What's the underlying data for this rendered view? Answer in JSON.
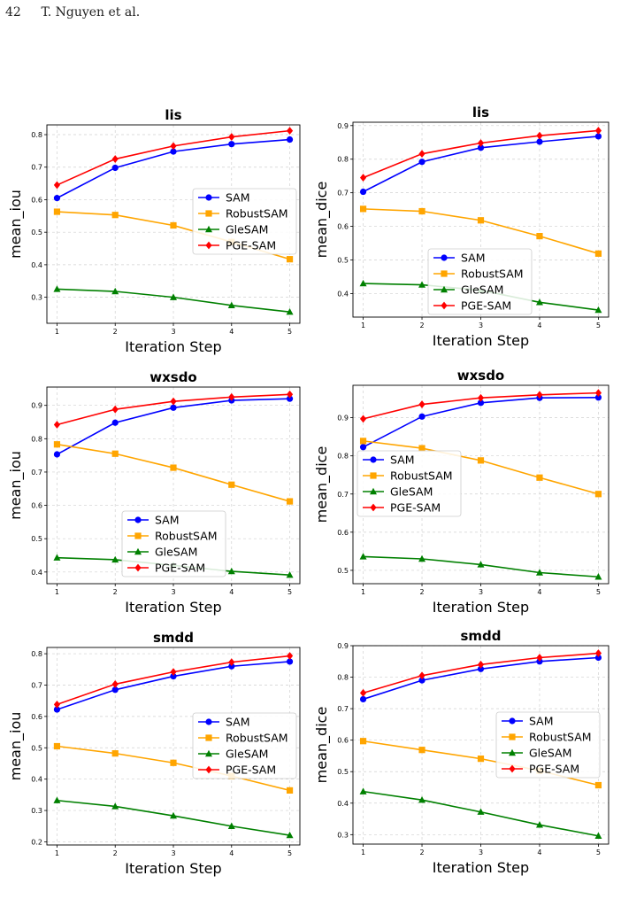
{
  "page": {
    "number": "42",
    "running_head": "T. Nguyen et al."
  },
  "legend_labels": [
    "SAM",
    "RobustSAM",
    "GleSAM",
    "PGE-SAM"
  ],
  "series_colors": {
    "SAM": "#0000ff",
    "RobustSAM": "#ffa500",
    "GleSAM": "#008000",
    "PGE-SAM": "#ff0000"
  },
  "series_markers": {
    "SAM": "circle",
    "RobustSAM": "square",
    "GleSAM": "triangle",
    "PGE-SAM": "diamond"
  },
  "chart_data": [
    {
      "type": "line",
      "title": "lis",
      "xlabel": "Iteration Step",
      "ylabel": "mean_iou",
      "x": [
        1,
        2,
        3,
        4,
        5
      ],
      "ylim": [
        0.22,
        0.83
      ],
      "yticks": [
        0.3,
        0.4,
        0.5,
        0.6,
        0.7,
        0.8
      ],
      "grid": true,
      "legend_position": "center-right",
      "series": [
        {
          "name": "SAM",
          "values": [
            0.605,
            0.698,
            0.748,
            0.771,
            0.785
          ]
        },
        {
          "name": "RobustSAM",
          "values": [
            0.563,
            0.553,
            0.521,
            0.47,
            0.417
          ]
        },
        {
          "name": "GleSAM",
          "values": [
            0.325,
            0.318,
            0.3,
            0.275,
            0.255
          ]
        },
        {
          "name": "PGE-SAM",
          "values": [
            0.645,
            0.725,
            0.765,
            0.793,
            0.812
          ]
        }
      ]
    },
    {
      "type": "line",
      "title": "lis",
      "xlabel": "Iteration Step",
      "ylabel": "mean_dice",
      "x": [
        1,
        2,
        3,
        4,
        5
      ],
      "ylim": [
        0.33,
        0.91
      ],
      "yticks": [
        0.4,
        0.5,
        0.6,
        0.7,
        0.8,
        0.9
      ],
      "grid": true,
      "legend_position": "lower-right",
      "series": [
        {
          "name": "SAM",
          "values": [
            0.703,
            0.792,
            0.834,
            0.852,
            0.868
          ]
        },
        {
          "name": "RobustSAM",
          "values": [
            0.652,
            0.645,
            0.618,
            0.571,
            0.519
          ]
        },
        {
          "name": "GleSAM",
          "values": [
            0.43,
            0.426,
            0.41,
            0.374,
            0.351
          ]
        },
        {
          "name": "PGE-SAM",
          "values": [
            0.745,
            0.816,
            0.848,
            0.87,
            0.885
          ]
        }
      ]
    },
    {
      "type": "line",
      "title": "wxsdo",
      "xlabel": "Iteration Step",
      "ylabel": "mean_iou",
      "x": [
        1,
        2,
        3,
        4,
        5
      ],
      "ylim": [
        0.365,
        0.955
      ],
      "yticks": [
        0.4,
        0.5,
        0.6,
        0.7,
        0.8,
        0.9
      ],
      "grid": true,
      "legend_position": "lower-center",
      "series": [
        {
          "name": "SAM",
          "values": [
            0.753,
            0.848,
            0.893,
            0.915,
            0.92
          ]
        },
        {
          "name": "RobustSAM",
          "values": [
            0.783,
            0.755,
            0.713,
            0.662,
            0.612
          ]
        },
        {
          "name": "GleSAM",
          "values": [
            0.443,
            0.437,
            0.42,
            0.402,
            0.391
          ]
        },
        {
          "name": "PGE-SAM",
          "values": [
            0.842,
            0.888,
            0.912,
            0.925,
            0.933
          ]
        }
      ]
    },
    {
      "type": "line",
      "title": "wxsdo",
      "xlabel": "Iteration Step",
      "ylabel": "mean_dice",
      "x": [
        1,
        2,
        3,
        4,
        5
      ],
      "ylim": [
        0.465,
        0.985
      ],
      "yticks": [
        0.5,
        0.6,
        0.7,
        0.8,
        0.9
      ],
      "grid": true,
      "legend_position": "center-left",
      "series": [
        {
          "name": "SAM",
          "values": [
            0.823,
            0.903,
            0.939,
            0.952,
            0.953
          ]
        },
        {
          "name": "RobustSAM",
          "values": [
            0.839,
            0.82,
            0.788,
            0.743,
            0.7
          ]
        },
        {
          "name": "GleSAM",
          "values": [
            0.536,
            0.53,
            0.515,
            0.494,
            0.483
          ]
        },
        {
          "name": "PGE-SAM",
          "values": [
            0.897,
            0.935,
            0.952,
            0.96,
            0.965
          ]
        }
      ]
    },
    {
      "type": "line",
      "title": "smdd",
      "xlabel": "Iteration Step",
      "ylabel": "mean_iou",
      "x": [
        1,
        2,
        3,
        4,
        5
      ],
      "ylim": [
        0.19,
        0.82
      ],
      "yticks": [
        0.2,
        0.3,
        0.4,
        0.5,
        0.6,
        0.7,
        0.8
      ],
      "grid": true,
      "legend_position": "center-right",
      "series": [
        {
          "name": "SAM",
          "values": [
            0.622,
            0.685,
            0.728,
            0.76,
            0.775
          ]
        },
        {
          "name": "RobustSAM",
          "values": [
            0.505,
            0.482,
            0.452,
            0.41,
            0.364
          ]
        },
        {
          "name": "GleSAM",
          "values": [
            0.332,
            0.313,
            0.283,
            0.25,
            0.221
          ]
        },
        {
          "name": "PGE-SAM",
          "values": [
            0.638,
            0.703,
            0.742,
            0.773,
            0.793
          ]
        }
      ]
    },
    {
      "type": "line",
      "title": "smdd",
      "xlabel": "Iteration Step",
      "ylabel": "mean_dice",
      "x": [
        1,
        2,
        3,
        4,
        5
      ],
      "ylim": [
        0.27,
        0.9
      ],
      "yticks": [
        0.3,
        0.4,
        0.5,
        0.6,
        0.7,
        0.8,
        0.9
      ],
      "grid": true,
      "legend_position": "center-right",
      "series": [
        {
          "name": "SAM",
          "values": [
            0.73,
            0.79,
            0.826,
            0.85,
            0.862
          ]
        },
        {
          "name": "RobustSAM",
          "values": [
            0.597,
            0.569,
            0.541,
            0.503,
            0.457
          ]
        },
        {
          "name": "GleSAM",
          "values": [
            0.437,
            0.41,
            0.372,
            0.331,
            0.296
          ]
        },
        {
          "name": "PGE-SAM",
          "values": [
            0.75,
            0.805,
            0.84,
            0.862,
            0.876
          ]
        }
      ]
    }
  ]
}
